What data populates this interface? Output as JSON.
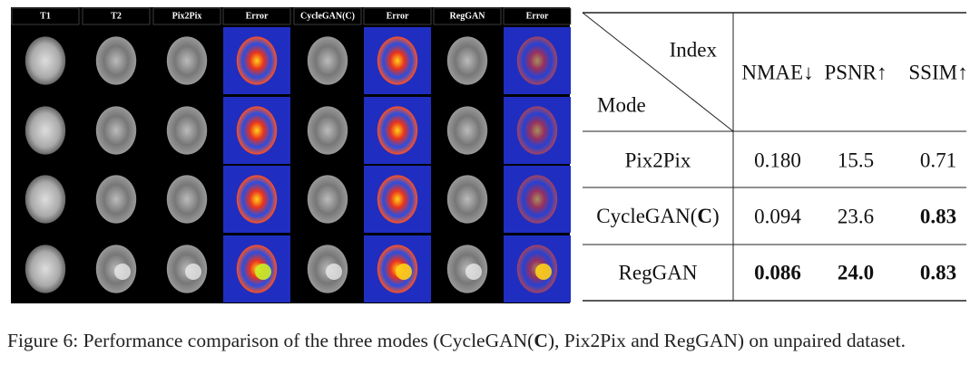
{
  "figure": {
    "panel_headers": [
      "T1",
      "T2",
      "Pix2Pix",
      "Error",
      "CycleGAN(C)",
      "Error",
      "RegGAN",
      "Error"
    ],
    "row_count": 4
  },
  "table": {
    "header_index": "Index",
    "header_mode": "Mode",
    "columns": [
      "NMAE↓",
      "PSNR↑",
      "SSIM↑"
    ],
    "rows": [
      {
        "mode": "Pix2Pix",
        "values": [
          "0.180",
          "15.5",
          "0.71"
        ],
        "bold": [
          false,
          false,
          false
        ]
      },
      {
        "mode": [
          "CycleGAN(",
          "C",
          ")"
        ],
        "values": [
          "0.094",
          "23.6",
          "0.83"
        ],
        "bold": [
          false,
          false,
          true
        ]
      },
      {
        "mode": "RegGAN",
        "values": [
          "0.086",
          "24.0",
          "0.83"
        ],
        "bold": [
          true,
          true,
          true
        ]
      }
    ]
  },
  "caption": {
    "before": "Figure 6: Performance comparison of the three modes (CycleGAN(",
    "bold": "C",
    "after": "), Pix2Pix and RegGAN) on unpaired dataset."
  }
}
